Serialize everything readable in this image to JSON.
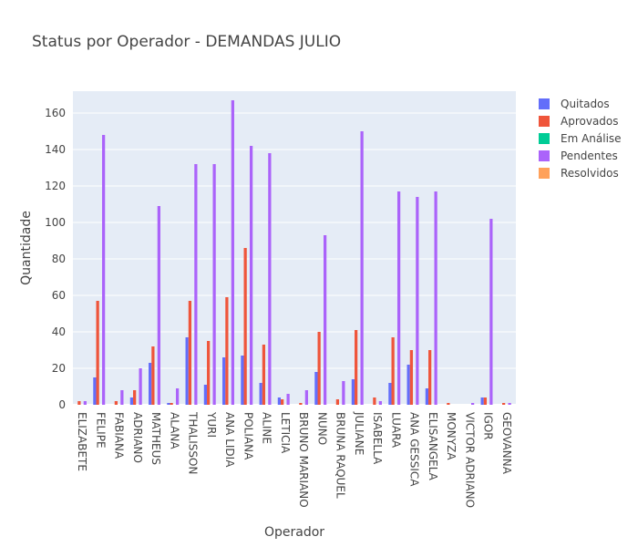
{
  "chart_data": {
    "type": "bar",
    "title": "Status por Operador - DEMANDAS JULIO",
    "xlabel": "Operador",
    "ylabel": "Quantidade",
    "ylim": [
      0,
      172
    ],
    "yticks": [
      0,
      20,
      40,
      60,
      80,
      100,
      120,
      140,
      160
    ],
    "grid": true,
    "legend_position": "top-right",
    "categories": [
      "ELIZABETE",
      "FELIPE",
      "FABIANA",
      "ADRIANO",
      "MATHEUS",
      "ALANA",
      "THALISSON",
      "YURI",
      "ANA LIDIA",
      "POLIANA",
      "ALINE",
      "LETICIA",
      "BRUNO MARIANO",
      "NUNO",
      "BRUNA RAQUEL",
      "JULIANE",
      "ISABELLA",
      "LUARA",
      "ANA GESSICA",
      "ELISANGELA",
      "MONYZA",
      "VICTOR ADRIANO",
      "IGOR",
      "GEOVANNA"
    ],
    "series": [
      {
        "name": "Quitados",
        "color": "#636efa",
        "values": [
          0,
          15,
          0,
          4,
          23,
          1,
          37,
          11,
          26,
          27,
          12,
          4,
          0,
          18,
          0,
          14,
          0,
          12,
          22,
          9,
          0,
          0,
          4,
          0
        ]
      },
      {
        "name": "Aprovados",
        "color": "#ef553b",
        "values": [
          2,
          57,
          2,
          8,
          32,
          1,
          57,
          35,
          59,
          86,
          33,
          3,
          1,
          40,
          3,
          41,
          4,
          37,
          30,
          30,
          1,
          0,
          4,
          1
        ]
      },
      {
        "name": "Em Análise",
        "color": "#00cc96",
        "values": [
          0,
          0,
          0,
          0,
          0,
          0,
          0,
          0,
          0,
          0,
          0,
          0,
          0,
          0,
          0,
          0,
          0,
          0,
          0,
          0,
          0,
          0,
          0,
          0
        ]
      },
      {
        "name": "Pendentes",
        "color": "#ab63fa",
        "values": [
          2,
          148,
          8,
          20,
          109,
          9,
          132,
          132,
          167,
          142,
          138,
          6,
          8,
          93,
          13,
          150,
          2,
          117,
          114,
          117,
          0,
          1,
          102,
          1
        ]
      },
      {
        "name": "Resolvidos",
        "color": "#ffa15a",
        "values": [
          0,
          0,
          0,
          0,
          0,
          0,
          0,
          0,
          0,
          0,
          0,
          0,
          0,
          0,
          0,
          0,
          0,
          0,
          0,
          0,
          0,
          0,
          0,
          0
        ]
      }
    ]
  }
}
